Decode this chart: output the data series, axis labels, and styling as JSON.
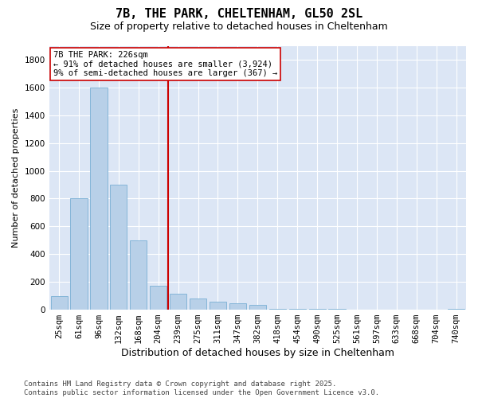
{
  "title": "7B, THE PARK, CHELTENHAM, GL50 2SL",
  "subtitle": "Size of property relative to detached houses in Cheltenham",
  "xlabel": "Distribution of detached houses by size in Cheltenham",
  "ylabel": "Number of detached properties",
  "categories": [
    "25sqm",
    "61sqm",
    "96sqm",
    "132sqm",
    "168sqm",
    "204sqm",
    "239sqm",
    "275sqm",
    "311sqm",
    "347sqm",
    "382sqm",
    "418sqm",
    "454sqm",
    "490sqm",
    "525sqm",
    "561sqm",
    "597sqm",
    "633sqm",
    "668sqm",
    "704sqm",
    "740sqm"
  ],
  "values": [
    100,
    800,
    1600,
    900,
    500,
    175,
    115,
    80,
    55,
    45,
    35,
    5,
    5,
    5,
    5,
    0,
    0,
    0,
    0,
    0,
    5
  ],
  "bar_color": "#b8d0e8",
  "bar_edge_color": "#7aafd4",
  "vline_x_index": 6,
  "vline_color": "#cc0000",
  "annotation_text": "7B THE PARK: 226sqm\n← 91% of detached houses are smaller (3,924)\n9% of semi-detached houses are larger (367) →",
  "annotation_box_facecolor": "#ffffff",
  "annotation_box_edgecolor": "#cc0000",
  "ylim": [
    0,
    1900
  ],
  "yticks": [
    0,
    200,
    400,
    600,
    800,
    1000,
    1200,
    1400,
    1600,
    1800
  ],
  "fig_facecolor": "#ffffff",
  "plot_facecolor": "#dce6f5",
  "grid_color": "#ffffff",
  "footer": "Contains HM Land Registry data © Crown copyright and database right 2025.\nContains public sector information licensed under the Open Government Licence v3.0.",
  "title_fontsize": 11,
  "subtitle_fontsize": 9,
  "xlabel_fontsize": 9,
  "ylabel_fontsize": 8,
  "tick_fontsize": 7.5,
  "annotation_fontsize": 7.5,
  "footer_fontsize": 6.5
}
